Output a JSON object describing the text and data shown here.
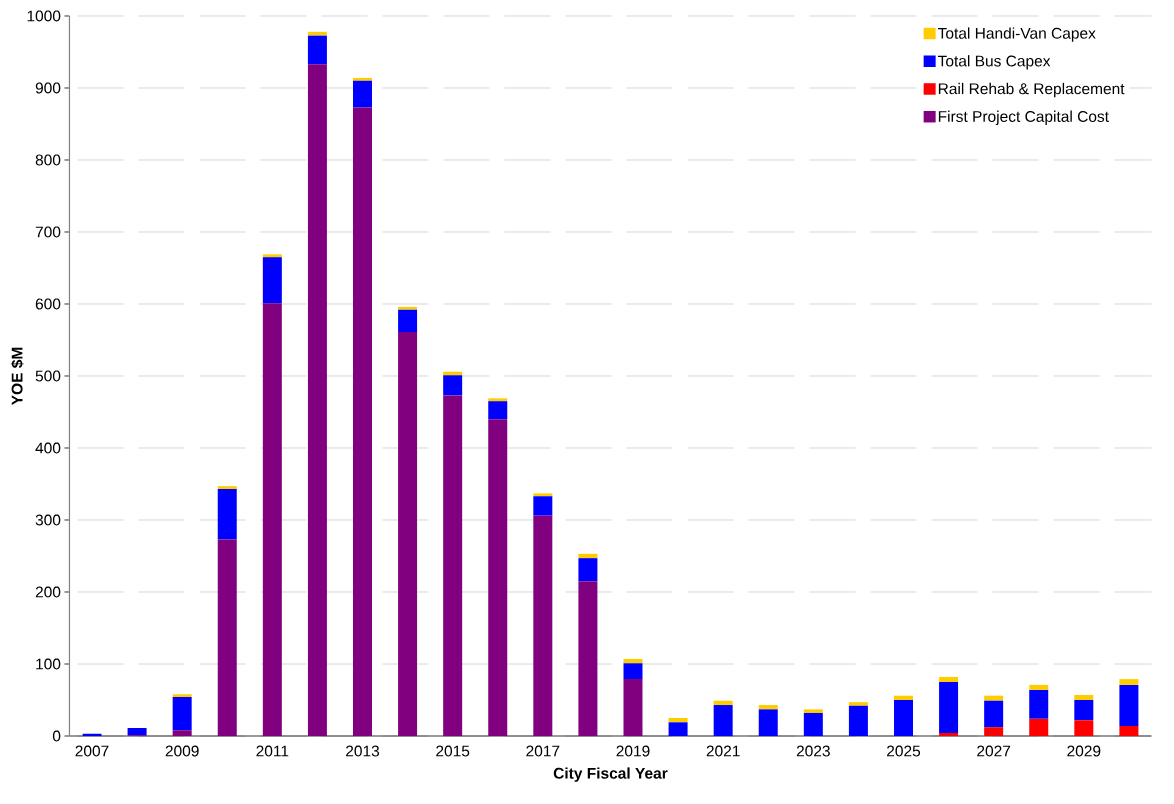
{
  "chart_data": {
    "type": "bar",
    "stacked": true,
    "xlabel": "City Fiscal Year",
    "ylabel": "YOE $M",
    "categories": [
      "2007",
      null,
      "2009",
      null,
      "2011",
      null,
      "2013",
      null,
      "2015",
      null,
      "2017",
      null,
      "2019",
      null,
      "2021",
      null,
      "2023",
      null,
      "2025",
      null,
      "2027",
      null,
      "2029",
      null
    ],
    "series": [
      {
        "name": "First Project Capital Cost",
        "color": "#800080",
        "values": [
          0,
          1,
          8,
          273,
          601,
          933,
          873,
          561,
          473,
          440,
          306,
          215,
          79,
          0,
          0,
          0,
          0,
          0,
          0,
          0,
          0,
          0,
          0,
          0
        ]
      },
      {
        "name": "Rail Rehab & Replacement",
        "color": "#ff0000",
        "values": [
          0,
          0,
          0,
          0,
          0,
          0,
          0,
          0,
          0,
          0,
          0,
          0,
          0,
          0,
          0,
          0,
          0,
          0,
          0,
          4,
          12,
          24,
          22,
          14
        ]
      },
      {
        "name": "Total Bus Capex",
        "color": "#0000ff",
        "values": [
          3,
          10,
          46,
          70,
          64,
          40,
          37,
          31,
          28,
          25,
          27,
          32,
          22,
          19,
          43,
          37,
          32,
          42,
          50,
          71,
          37,
          40,
          28,
          57
        ]
      },
      {
        "name": "Total Handi-Van Capex",
        "color": "#ffcc00",
        "values": [
          0,
          0,
          4,
          4,
          4,
          5,
          4,
          4,
          5,
          4,
          4,
          6,
          6,
          6,
          6,
          6,
          5,
          5,
          6,
          7,
          7,
          7,
          7,
          8
        ]
      }
    ],
    "ylim": [
      0,
      1000
    ],
    "yticks": [
      0,
      100,
      200,
      300,
      400,
      500,
      600,
      700,
      800,
      900,
      1000
    ],
    "grid": "y",
    "legend": "top right"
  }
}
